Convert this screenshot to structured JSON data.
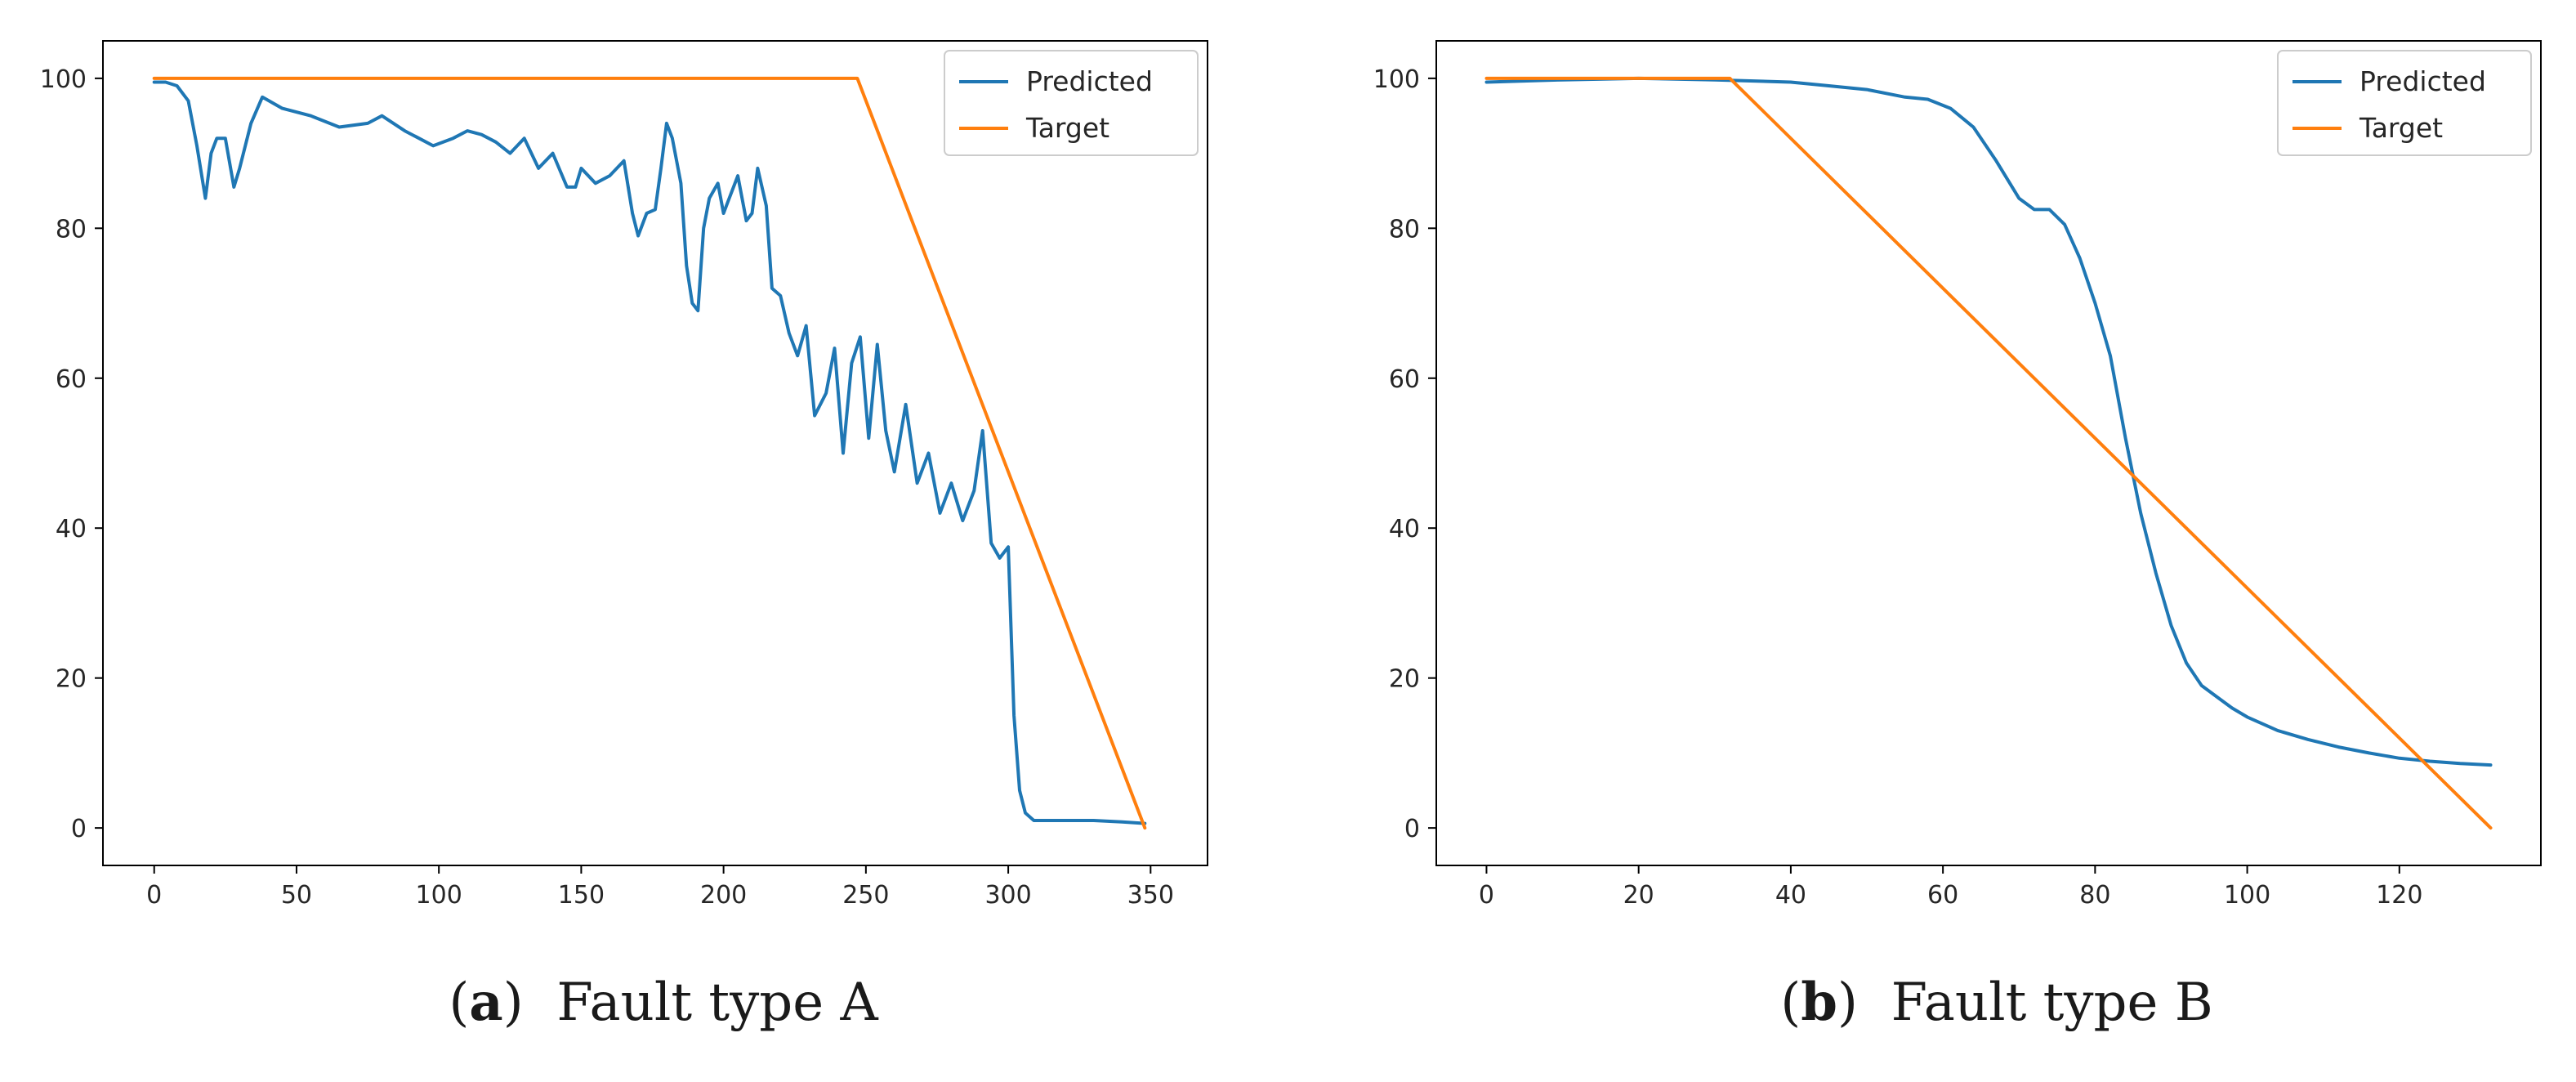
{
  "chart_data": [
    {
      "type": "line",
      "caption": {
        "letter": "a",
        "text": "Fault type A"
      },
      "title": "",
      "xlabel": "",
      "ylabel": "",
      "xlim": [
        -18,
        370
      ],
      "ylim": [
        -5,
        105
      ],
      "xticks": [
        0,
        50,
        100,
        150,
        200,
        250,
        300,
        350
      ],
      "yticks": [
        0,
        20,
        40,
        60,
        80,
        100
      ],
      "legend_position": "top-right",
      "series": [
        {
          "name": "Predicted",
          "color": "#1f77b4",
          "x": [
            0,
            4,
            8,
            12,
            15,
            18,
            20,
            22,
            25,
            28,
            30,
            34,
            38,
            45,
            55,
            65,
            75,
            80,
            88,
            93,
            98,
            105,
            110,
            115,
            120,
            125,
            130,
            135,
            140,
            145,
            148,
            150,
            155,
            160,
            165,
            168,
            170,
            173,
            176,
            178,
            180,
            182,
            185,
            187,
            189,
            191,
            193,
            195,
            198,
            200,
            202,
            205,
            208,
            210,
            212,
            215,
            217,
            220,
            223,
            226,
            229,
            232,
            236,
            239,
            242,
            245,
            248,
            251,
            254,
            257,
            260,
            264,
            268,
            272,
            276,
            280,
            284,
            288,
            291,
            294,
            297,
            300,
            302,
            304,
            306,
            309,
            312,
            318,
            330,
            340,
            348
          ],
          "values": [
            99.5,
            99.5,
            99,
            97,
            91,
            84,
            90,
            92,
            92,
            85.5,
            88,
            94,
            97.5,
            96,
            95,
            93.5,
            94,
            95,
            93,
            92,
            91,
            92,
            93,
            92.5,
            91.5,
            90,
            92,
            88,
            90,
            85.5,
            85.5,
            88,
            86,
            87,
            89,
            82,
            79,
            82,
            82.5,
            88,
            94,
            92,
            86,
            75,
            70,
            69,
            80,
            84,
            86,
            82,
            84,
            87,
            81,
            82,
            88,
            83,
            72,
            71,
            66,
            63,
            67,
            55,
            58,
            64,
            50,
            62,
            65.5,
            52,
            64.5,
            53,
            47.5,
            56.5,
            46,
            50,
            42,
            46,
            41,
            45,
            53,
            38,
            36,
            37.5,
            15,
            5,
            2,
            1,
            1,
            1,
            1,
            0.8,
            0.6
          ]
        },
        {
          "name": "Target",
          "color": "#ff7f0e",
          "x": [
            0,
            247,
            348
          ],
          "values": [
            100,
            100,
            0
          ]
        }
      ]
    },
    {
      "type": "line",
      "caption": {
        "letter": "b",
        "text": "Fault type B"
      },
      "title": "",
      "xlabel": "",
      "ylabel": "",
      "xlim": [
        -6.6,
        138.6
      ],
      "ylim": [
        -5,
        105
      ],
      "xticks": [
        0,
        20,
        40,
        60,
        80,
        100,
        120
      ],
      "yticks": [
        0,
        20,
        40,
        60,
        80,
        100
      ],
      "legend_position": "top-right",
      "series": [
        {
          "name": "Predicted",
          "color": "#1f77b4",
          "x": [
            0,
            10,
            20,
            30,
            40,
            45,
            50,
            55,
            58,
            61,
            64,
            67,
            70,
            72,
            74,
            76,
            78,
            80,
            82,
            84,
            86,
            88,
            90,
            92,
            94,
            96,
            98,
            100,
            104,
            108,
            112,
            116,
            120,
            124,
            128,
            132
          ],
          "values": [
            99.5,
            99.8,
            100,
            99.8,
            99.5,
            99,
            98.5,
            97.5,
            97.2,
            96,
            93.5,
            89,
            84,
            82.5,
            82.5,
            80.5,
            76,
            70,
            63,
            52,
            42,
            34,
            27,
            22,
            19,
            17.5,
            16,
            14.8,
            13,
            11.8,
            10.8,
            10,
            9.3,
            8.9,
            8.6,
            8.4
          ]
        },
        {
          "name": "Target",
          "color": "#ff7f0e",
          "x": [
            0,
            32,
            132
          ],
          "values": [
            100,
            100,
            0
          ]
        }
      ]
    }
  ]
}
